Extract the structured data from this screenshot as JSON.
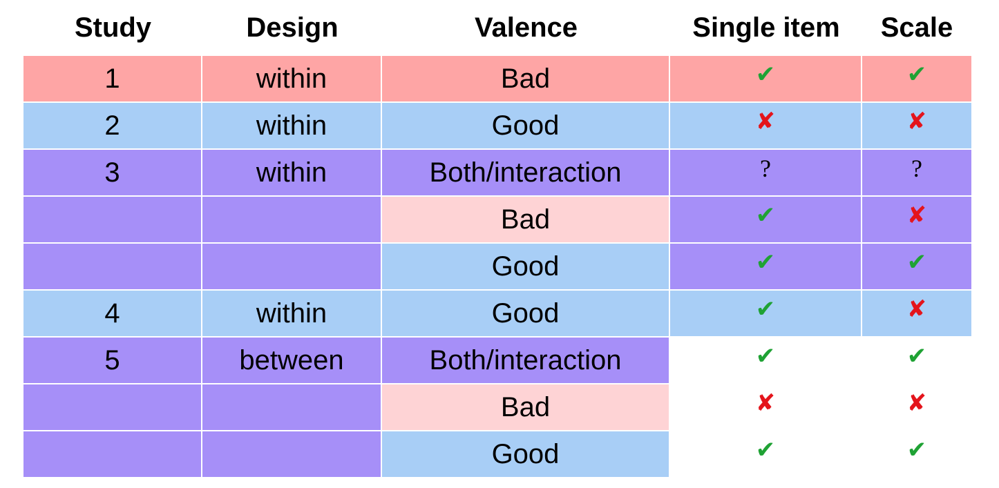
{
  "colors": {
    "red": "#fea5a5",
    "blue": "#a8cef6",
    "purple": "#a68ff8",
    "pink": "#fed3d5",
    "white": "#ffffff",
    "check": "#1fa234",
    "cross": "#e4141b",
    "question": "#000000"
  },
  "header": [
    "Study",
    "Design",
    "Valence",
    "Single item",
    "Scale"
  ],
  "symbols": {
    "check": "✔",
    "cross": "✘",
    "question": "?"
  },
  "rows": [
    {
      "study": "1",
      "design": "within",
      "valence": "Bad",
      "single": "check",
      "scale": "check",
      "bg": [
        "red",
        "red",
        "red",
        "red",
        "red"
      ]
    },
    {
      "study": "2",
      "design": "within",
      "valence": "Good",
      "single": "cross",
      "scale": "cross",
      "bg": [
        "blue",
        "blue",
        "blue",
        "blue",
        "blue"
      ]
    },
    {
      "study": "3",
      "design": "within",
      "valence": "Both/interaction",
      "single": "question",
      "scale": "question",
      "bg": [
        "purple",
        "purple",
        "purple",
        "purple",
        "purple"
      ]
    },
    {
      "study": "",
      "design": "",
      "valence": "Bad",
      "single": "check",
      "scale": "cross",
      "bg": [
        "purple",
        "purple",
        "pink",
        "purple",
        "purple"
      ]
    },
    {
      "study": "",
      "design": "",
      "valence": "Good",
      "single": "check",
      "scale": "check",
      "bg": [
        "purple",
        "purple",
        "blue",
        "purple",
        "purple"
      ]
    },
    {
      "study": "4",
      "design": "within",
      "valence": "Good",
      "single": "check",
      "scale": "cross",
      "bg": [
        "blue",
        "blue",
        "blue",
        "blue",
        "blue"
      ]
    },
    {
      "study": "5",
      "design": "between",
      "valence": "Both/interaction",
      "single": "check",
      "scale": "check",
      "bg": [
        "purple",
        "purple",
        "purple",
        "white",
        "white"
      ]
    },
    {
      "study": "",
      "design": "",
      "valence": "Bad",
      "single": "cross",
      "scale": "cross",
      "bg": [
        "purple",
        "purple",
        "pink",
        "white",
        "white"
      ]
    },
    {
      "study": "",
      "design": "",
      "valence": "Good",
      "single": "check",
      "scale": "check",
      "bg": [
        "purple",
        "purple",
        "blue",
        "white",
        "white"
      ]
    }
  ]
}
